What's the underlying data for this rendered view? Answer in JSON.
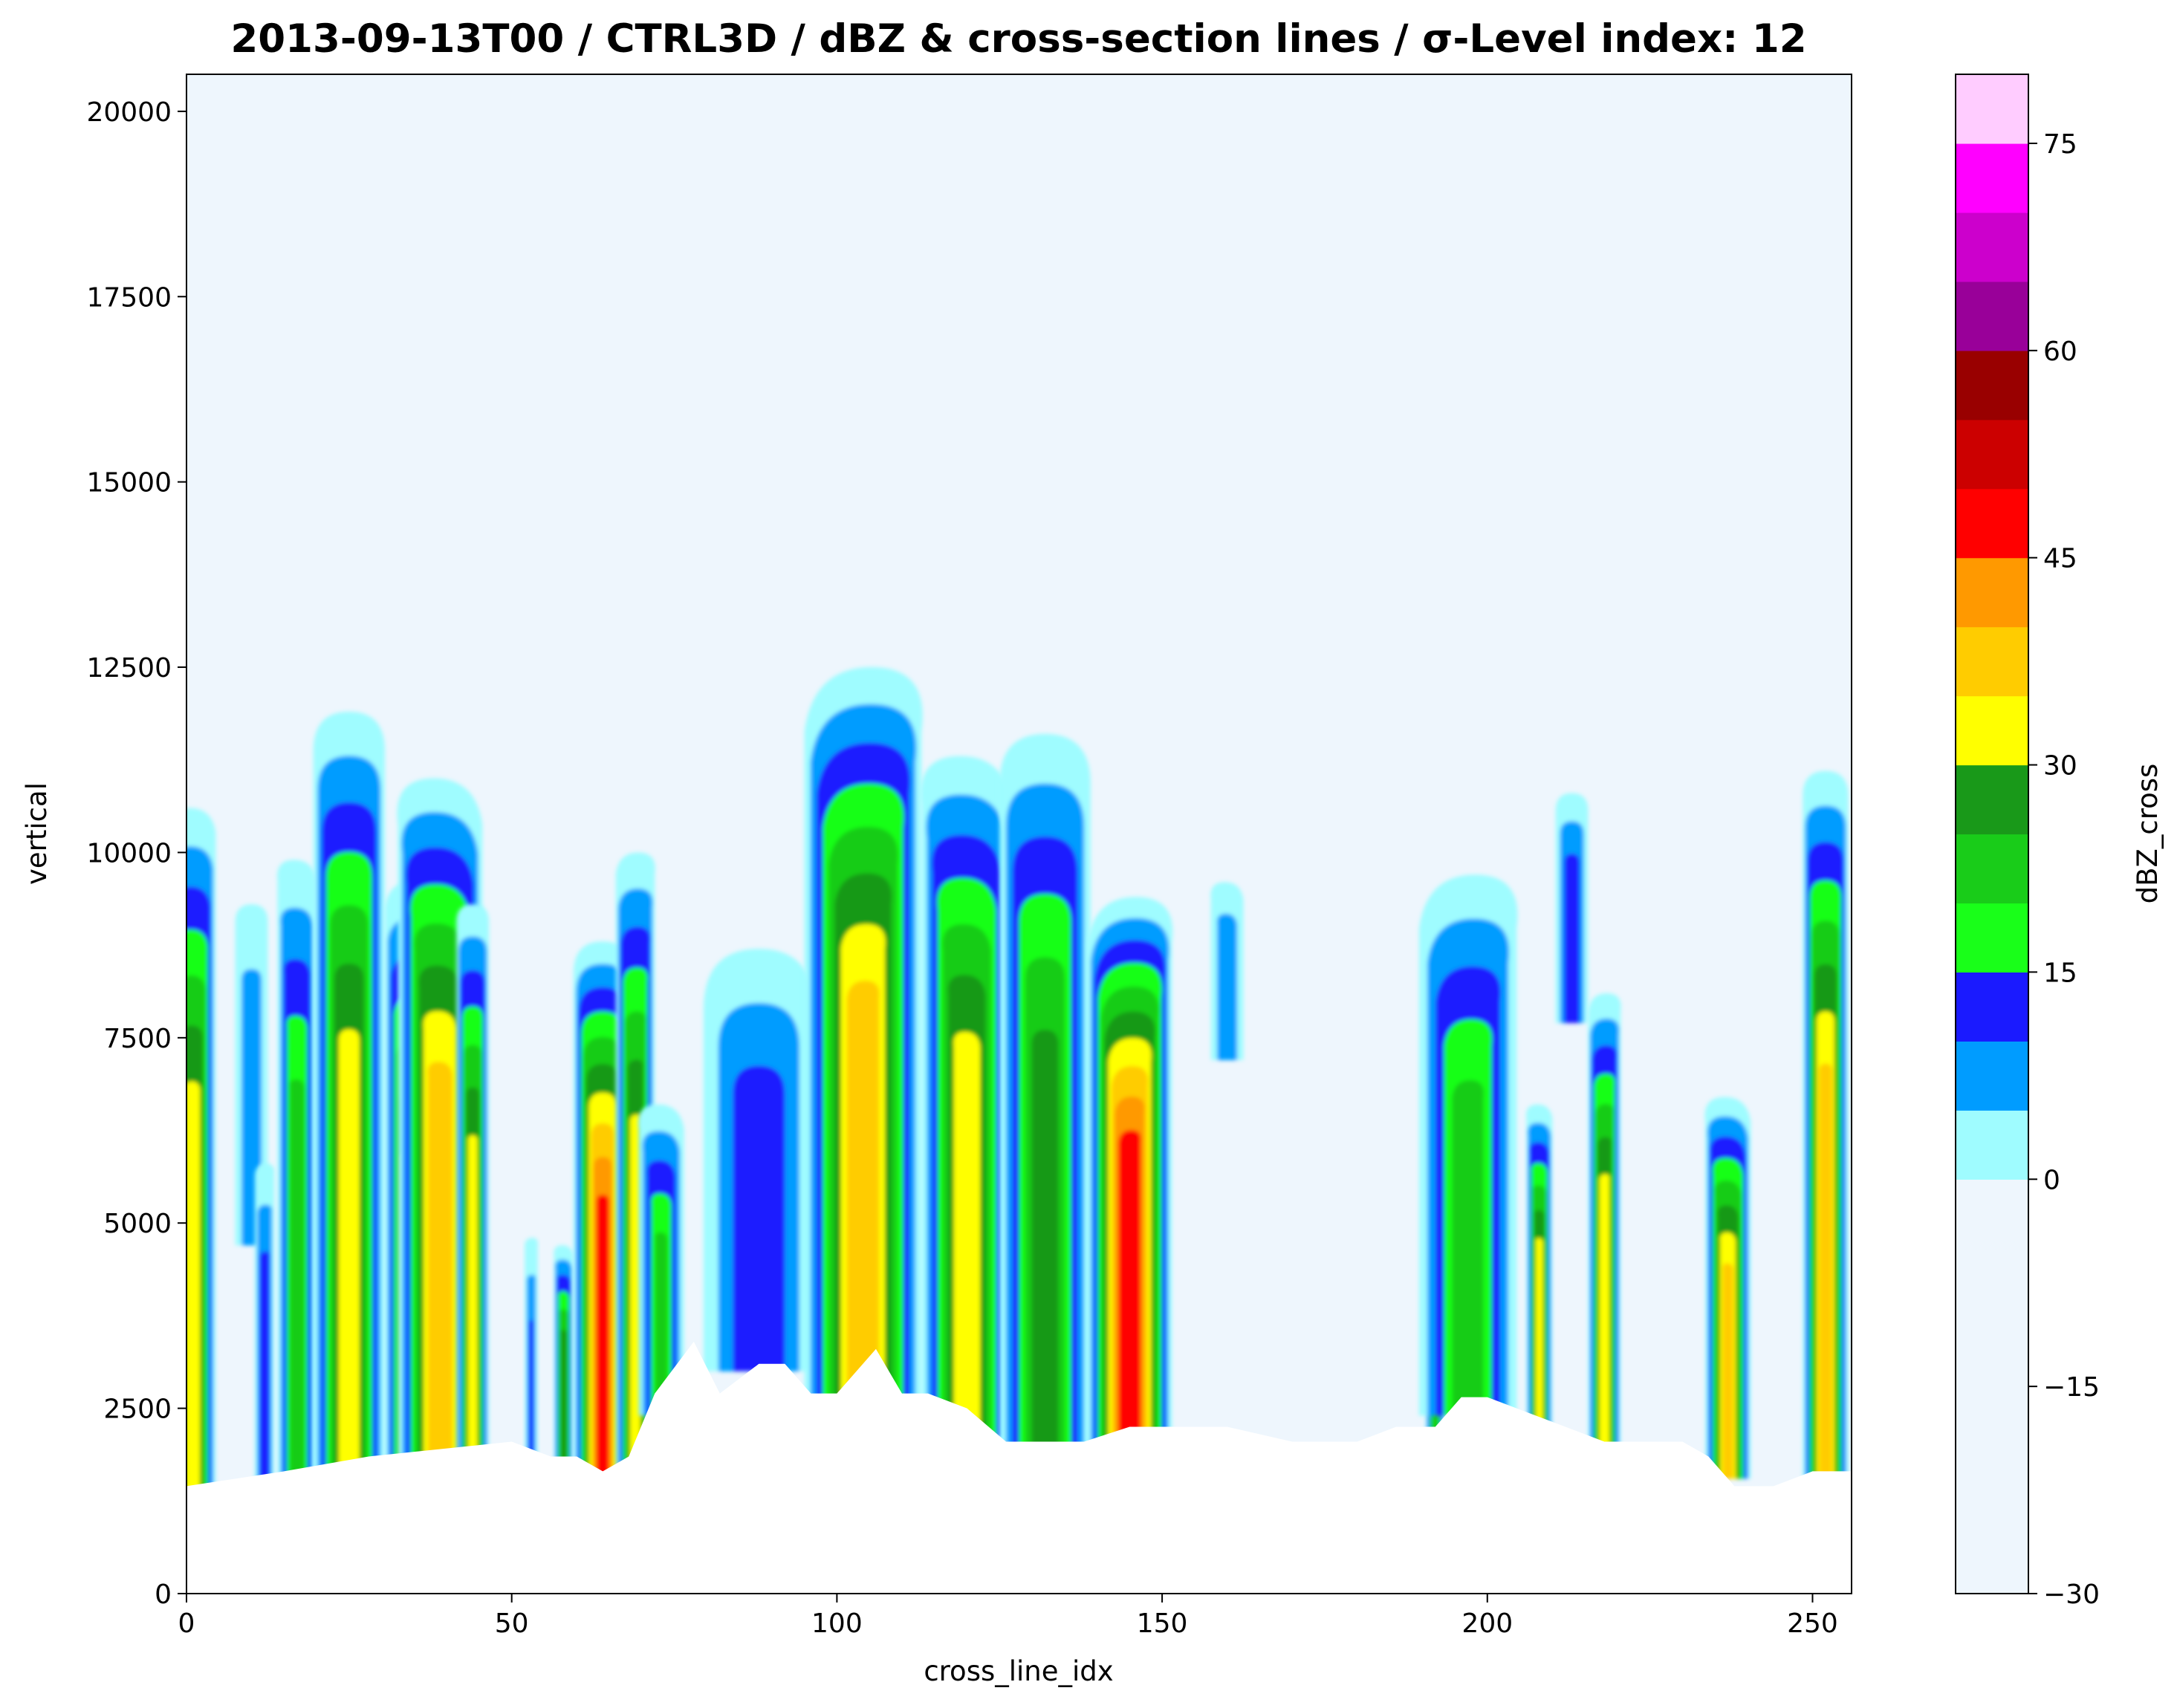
{
  "chart_data": {
    "type": "contourf",
    "title": "2013-09-13T00 / CTRL3D / dBZ & cross-section lines / σ-Level index: 12",
    "xlabel": "cross_line_idx",
    "ylabel": "vertical",
    "xlim": [
      0,
      256
    ],
    "ylim": [
      0,
      20500
    ],
    "x_ticks": [
      0,
      50,
      100,
      150,
      200,
      250
    ],
    "y_ticks": [
      0,
      2500,
      5000,
      7500,
      10000,
      12500,
      15000,
      17500,
      20000
    ],
    "background_color": "#eef6fd",
    "terrain": {
      "color": "#ffffff",
      "x": [
        0,
        15,
        28,
        50,
        56,
        60,
        64,
        68,
        72,
        78,
        82,
        88,
        92,
        96,
        100,
        106,
        110,
        114,
        120,
        126,
        132,
        138,
        145,
        150,
        160,
        170,
        180,
        186,
        192,
        196,
        200,
        206,
        212,
        218,
        224,
        230,
        234,
        238,
        244,
        250,
        256
      ],
      "top": [
        1450,
        1650,
        1850,
        2050,
        1850,
        1850,
        1650,
        1850,
        2700,
        3400,
        2700,
        3100,
        3100,
        2700,
        2700,
        3300,
        2700,
        2700,
        2500,
        2050,
        2050,
        2050,
        2250,
        2250,
        2250,
        2050,
        2050,
        2250,
        2250,
        2650,
        2650,
        2450,
        2250,
        2050,
        2050,
        2050,
        1850,
        1450,
        1450,
        1650,
        1650
      ]
    },
    "colorbar": {
      "label": "dBZ_cross",
      "ticks": [
        -30,
        -15,
        0,
        15,
        30,
        45,
        60,
        75
      ],
      "bounds": [
        -30,
        0,
        5,
        10,
        15,
        20,
        25,
        30,
        35,
        40,
        45,
        50,
        55,
        60,
        65,
        70,
        75,
        80
      ],
      "colors": [
        "#eef6fd",
        "#9ffcff",
        "#009cff",
        "#1a1aff",
        "#19ff19",
        "#19cc19",
        "#199919",
        "#ffff00",
        "#ffcc00",
        "#ff9900",
        "#ff0000",
        "#cc0000",
        "#990000",
        "#990099",
        "#cc00cc",
        "#ff00ff",
        "#ffccff"
      ]
    },
    "cells": [
      {
        "x": 1,
        "bottom": 1450,
        "top": 10600,
        "width": 7,
        "peak": 34
      },
      {
        "x": 10,
        "bottom": 5000,
        "top": 9300,
        "width": 5,
        "peak": 8
      },
      {
        "x": 12,
        "bottom": 1450,
        "top": 5800,
        "width": 3,
        "peak": 14
      },
      {
        "x": 17,
        "bottom": 1650,
        "top": 9900,
        "width": 6,
        "peak": 24
      },
      {
        "x": 25,
        "bottom": 1650,
        "top": 11900,
        "width": 11,
        "peak": 33
      },
      {
        "x": 34,
        "bottom": 1850,
        "top": 9600,
        "width": 7,
        "peak": 30
      },
      {
        "x": 39,
        "bottom": 1850,
        "top": 11000,
        "width": 13,
        "peak": 39
      },
      {
        "x": 44,
        "bottom": 1850,
        "top": 9300,
        "width": 5,
        "peak": 33
      },
      {
        "x": 53,
        "bottom": 1850,
        "top": 4800,
        "width": 2,
        "peak": 10
      },
      {
        "x": 58,
        "bottom": 1850,
        "top": 4700,
        "width": 3,
        "peak": 28
      },
      {
        "x": 64,
        "bottom": 1650,
        "top": 8800,
        "width": 9,
        "peak": 46
      },
      {
        "x": 69,
        "bottom": 1850,
        "top": 10000,
        "width": 6,
        "peak": 32
      },
      {
        "x": 73,
        "bottom": 2700,
        "top": 6600,
        "width": 7,
        "peak": 20
      },
      {
        "x": 88,
        "bottom": 3300,
        "top": 8700,
        "width": 17,
        "peak": 13
      },
      {
        "x": 104,
        "bottom": 2700,
        "top": 12500,
        "width": 18,
        "peak": 38
      },
      {
        "x": 120,
        "bottom": 2400,
        "top": 11300,
        "width": 14,
        "peak": 33
      },
      {
        "x": 132,
        "bottom": 2050,
        "top": 11600,
        "width": 14,
        "peak": 27
      },
      {
        "x": 145,
        "bottom": 2250,
        "top": 9400,
        "width": 13,
        "peak": 49
      },
      {
        "x": 160,
        "bottom": 7500,
        "top": 9600,
        "width": 5,
        "peak": 8
      },
      {
        "x": 192,
        "bottom": 2250,
        "top": 6500,
        "width": 3,
        "peak": 24
      },
      {
        "x": 197,
        "bottom": 2700,
        "top": 9700,
        "width": 15,
        "peak": 22
      },
      {
        "x": 208,
        "bottom": 2450,
        "top": 6600,
        "width": 4,
        "peak": 32
      },
      {
        "x": 213,
        "bottom": 8000,
        "top": 10800,
        "width": 5,
        "peak": 13
      },
      {
        "x": 218,
        "bottom": 2050,
        "top": 8100,
        "width": 5,
        "peak": 34
      },
      {
        "x": 237,
        "bottom": 1850,
        "top": 6700,
        "width": 7,
        "peak": 36
      },
      {
        "x": 252,
        "bottom": 1650,
        "top": 11100,
        "width": 7,
        "peak": 39
      }
    ]
  }
}
